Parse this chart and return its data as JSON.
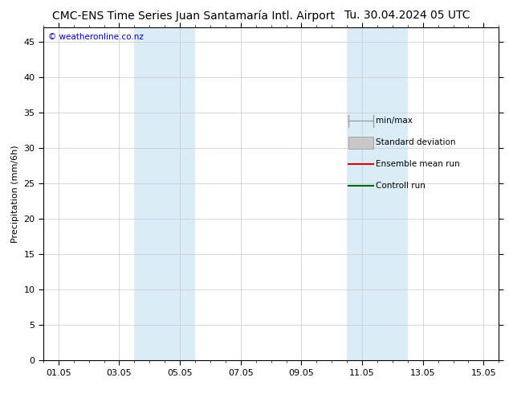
{
  "title_left": "CMC-ENS Time Series Juan Santamaría Intl. Airport",
  "title_right": "Tu. 30.04.2024 05 UTC",
  "ylabel": "Precipitation (mm/6h)",
  "ylim": [
    0,
    47
  ],
  "yticks": [
    0,
    5,
    10,
    15,
    20,
    25,
    30,
    35,
    40,
    45
  ],
  "xlim": [
    0,
    15
  ],
  "xtick_labels": [
    "01.05",
    "03.05",
    "05.05",
    "07.05",
    "09.05",
    "11.05",
    "13.05",
    "15.05"
  ],
  "xtick_positions": [
    0.5,
    2.5,
    4.5,
    6.5,
    8.5,
    10.5,
    12.5,
    14.5
  ],
  "shaded_regions": [
    {
      "x_start": 3.0,
      "x_end": 5.0,
      "color": "#daedf7",
      "alpha": 1.0
    },
    {
      "x_start": 10.0,
      "x_end": 12.0,
      "color": "#daedf7",
      "alpha": 1.0
    }
  ],
  "watermark_text": "© weatheronline.co.nz",
  "watermark_color": "#0000bb",
  "background_color": "#ffffff",
  "plot_bg_color": "#ffffff",
  "grid_color": "#c8c8c8",
  "title_fontsize": 10,
  "axis_label_fontsize": 8,
  "tick_fontsize": 8,
  "legend_fontsize": 7.5,
  "minmax_color": "#a0a0a0",
  "stddev_color": "#c8c8c8",
  "ensemble_color": "#dd0000",
  "control_color": "#006600"
}
